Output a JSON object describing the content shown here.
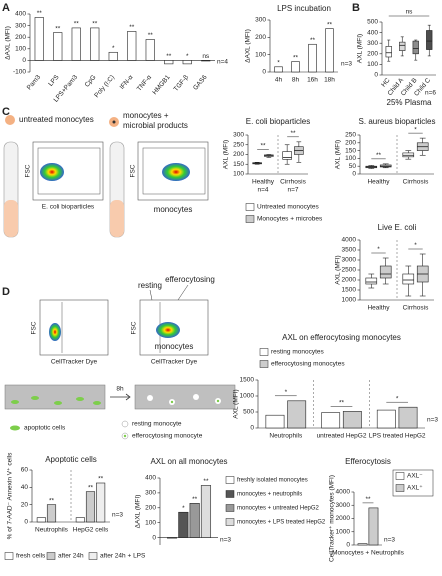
{
  "panels": {
    "a": "A",
    "b": "B",
    "c": "C",
    "d": "D"
  },
  "diagram": {
    "untreated": "untreated monocytes",
    "treated_1": "monocytes +",
    "treated_2": "microbial products",
    "fsc_c1": "FSC",
    "fsc_c2": "FSC",
    "xaxis_c1": "E. coli bioparticles",
    "monocytes_c": "monocytes",
    "fsc_d1": "FSC",
    "fsc_d2": "FSC",
    "xaxis_d1": "CellTracker Dye",
    "xaxis_d2": "CellTracker Dye",
    "resting": "resting",
    "efferocytosing": "efferocytosing",
    "monocytes_d": "monocytes",
    "time": "8h",
    "apoptotic": "apoptotic cells",
    "resting_monocyte": "resting monocyte",
    "efferocytosing_monocyte": "efferocytosing monocyte"
  },
  "chart_data": [
    {
      "type": "bar",
      "ylabel": "ΔAXL (MFI)",
      "categories": [
        "Pam3",
        "LPS",
        "LPS+Pam3",
        "CpG",
        "Poly (I:C)",
        "IFN-α",
        "TNF-α",
        "HMGB1",
        "TGF-β",
        "GAS6"
      ],
      "values": [
        370,
        240,
        280,
        280,
        70,
        250,
        180,
        -30,
        -30,
        0
      ],
      "color": "#ffffff",
      "significance": [
        "**",
        "**",
        "**",
        "**",
        "*",
        "**",
        "**",
        "**",
        "*",
        "ns"
      ],
      "ylim": [
        -100,
        400
      ],
      "yticks": [
        -100,
        0,
        100,
        200,
        300,
        400
      ],
      "note": "n=4"
    },
    {
      "type": "bar",
      "title": "LPS incubation",
      "ylabel": "ΔAXL (MFI)",
      "categories": [
        "4h",
        "8h",
        "16h",
        "18h"
      ],
      "values": [
        30,
        60,
        160,
        250
      ],
      "color": "#ffffff",
      "significance": [
        "*",
        "**",
        "**",
        "**"
      ],
      "ylim": [
        0,
        300
      ],
      "yticks": [
        0,
        100,
        200,
        300
      ],
      "note": "n=3"
    },
    {
      "type": "box",
      "ylabel": "AXL (MFI)",
      "subtitle": "25% Plasma",
      "categories": [
        "HC",
        "Child A",
        "Child B",
        "Child C"
      ],
      "values": [
        {
          "min": 130,
          "q1": 170,
          "median": 210,
          "q3": 270,
          "max": 330
        },
        {
          "min": 180,
          "q1": 230,
          "median": 280,
          "q3": 310,
          "max": 360
        },
        {
          "min": 140,
          "q1": 200,
          "median": 250,
          "q3": 320,
          "max": 330
        },
        {
          "min": 180,
          "q1": 240,
          "median": 320,
          "q3": 420,
          "max": 470
        }
      ],
      "colors": [
        "#ffffff",
        "#d9d9d9",
        "#8c8c8c",
        "#4d4d4d"
      ],
      "overall": "ns",
      "ylim": [
        0,
        500
      ],
      "yticks": [
        0,
        100,
        200,
        300,
        400,
        500
      ],
      "note": "n=6"
    },
    {
      "type": "box",
      "title": "E. coli bioparticles",
      "ylabel": "AXL (MFI)",
      "categories": [
        "Healthy",
        "Cirrhosis"
      ],
      "sample_sizes": [
        "n=4",
        "n=7"
      ],
      "series": [
        {
          "name": "Untreated monocytes",
          "color": "#ffffff",
          "values": [
            {
              "min": 150,
              "q1": 152,
              "median": 155,
              "q3": 158,
              "max": 160
            },
            {
              "min": 150,
              "q1": 175,
              "median": 185,
              "q3": 215,
              "max": 250
            }
          ]
        },
        {
          "name": "Monocytes + microbes",
          "color": "#cccccc",
          "values": [
            {
              "min": 185,
              "q1": 190,
              "median": 195,
              "q3": 198,
              "max": 200
            },
            {
              "min": 160,
              "q1": 200,
              "median": 220,
              "q3": 240,
              "max": 265
            }
          ]
        }
      ],
      "brackets": [
        "**",
        "**"
      ],
      "ylim": [
        100,
        300
      ],
      "yticks": [
        100,
        150,
        200,
        250,
        300
      ],
      "legend": true
    },
    {
      "type": "box",
      "title": "S. aureus bioparticles",
      "ylabel": "AXL (MFI)",
      "categories": [
        "Healthy",
        "Cirrhosis"
      ],
      "series": [
        {
          "color": "#ffffff",
          "values": [
            {
              "min": 35,
              "q1": 40,
              "median": 45,
              "q3": 50,
              "max": 55
            },
            {
              "min": 95,
              "q1": 110,
              "median": 120,
              "q3": 135,
              "max": 150
            }
          ]
        },
        {
          "color": "#cccccc",
          "values": [
            {
              "min": 40,
              "q1": 45,
              "median": 50,
              "q3": 58,
              "max": 65
            },
            {
              "min": 120,
              "q1": 150,
              "median": 175,
              "q3": 200,
              "max": 230
            }
          ]
        }
      ],
      "brackets": [
        "**",
        "*"
      ],
      "ylim": [
        0,
        250
      ],
      "yticks": [
        0,
        50,
        100,
        150,
        200,
        250
      ]
    },
    {
      "type": "box",
      "title": "Live E. coli",
      "ylabel": "AXL (MFI)",
      "categories": [
        "Healthy",
        "Cirrhosis"
      ],
      "series": [
        {
          "color": "#ffffff",
          "values": [
            {
              "min": 1600,
              "q1": 1800,
              "median": 1900,
              "q3": 2100,
              "max": 2300
            },
            {
              "min": 1200,
              "q1": 1800,
              "median": 2000,
              "q3": 2300,
              "max": 2700
            }
          ]
        },
        {
          "color": "#cccccc",
          "values": [
            {
              "min": 1800,
              "q1": 2100,
              "median": 2300,
              "q3": 2700,
              "max": 3100
            },
            {
              "min": 1200,
              "q1": 1900,
              "median": 2300,
              "q3": 2700,
              "max": 3300
            }
          ]
        }
      ],
      "brackets": [
        "*",
        "*"
      ],
      "ylim": [
        1000,
        4000
      ],
      "yticks": [
        1000,
        1500,
        2000,
        2500,
        3000,
        3500,
        4000
      ]
    },
    {
      "type": "bar",
      "title": "AXL on efferocytosing monocytes",
      "ylabel": "AXL (MFI)",
      "categories": [
        "Neutrophils",
        "untreated HepG2",
        "LPS treated HepG2"
      ],
      "series": [
        {
          "name": "resting monocytes",
          "color": "#ffffff",
          "values": [
            400,
            480,
            560
          ]
        },
        {
          "name": "efferocytosing monocytes",
          "color": "#cccccc",
          "values": [
            850,
            520,
            650
          ]
        }
      ],
      "brackets": [
        "*",
        "**",
        "*"
      ],
      "ylim": [
        0,
        1500
      ],
      "yticks": [
        0,
        500,
        1000,
        1500
      ],
      "note": "n=3",
      "legend": true
    },
    {
      "type": "bar",
      "title": "Apoptotic cells",
      "ylabel": "% of 7-AAD⁻ Annexin V⁺ cells",
      "categories": [
        "Neutrophils",
        "HepG2 cells"
      ],
      "series": [
        {
          "name": "fresh cells",
          "color": "#ffffff",
          "values": [
            5,
            5
          ]
        },
        {
          "name": "after 24h",
          "color": "#cccccc",
          "values": [
            20,
            35
          ],
          "significance": [
            "**",
            "**"
          ]
        },
        {
          "name": "after 24h + LPS",
          "color": "#eeeeee",
          "values": [
            null,
            45
          ],
          "significance": [
            null,
            "**"
          ]
        }
      ],
      "ylim": [
        0,
        60
      ],
      "yticks": [
        0,
        20,
        40,
        60
      ],
      "note": "n=3",
      "legend": true
    },
    {
      "type": "bar",
      "title": "AXL on all monocytes",
      "ylabel": "ΔAXL (MFI)",
      "categories": [
        null
      ],
      "series": [
        {
          "name": "freshly isolated monocytes",
          "color": "#ffffff",
          "values": [
            0
          ]
        },
        {
          "name": "monocytes + neutrophils",
          "color": "#555555",
          "values": [
            170
          ],
          "significance": [
            "*"
          ]
        },
        {
          "name": "monocytes + untreated HepG2",
          "color": "#999999",
          "values": [
            230
          ],
          "significance": [
            "**"
          ]
        },
        {
          "name": "monocytes + LPS treated HepG2",
          "color": "#dddddd",
          "values": [
            350
          ],
          "significance": [
            "**"
          ]
        }
      ],
      "ylim": [
        -50,
        400
      ],
      "yticks": [
        0,
        100,
        200,
        300,
        400
      ],
      "note": "n=3",
      "legend": true
    },
    {
      "type": "bar",
      "title": "Efferocytosis",
      "ylabel": "CellTracker⁺ monocytes (MFI)",
      "categories": [
        "Monocytes + Neutrophils"
      ],
      "series": [
        {
          "name": "AXL⁻",
          "color": "#ffffff",
          "values": [
            100
          ]
        },
        {
          "name": "AXL⁺",
          "color": "#cccccc",
          "values": [
            2800
          ]
        }
      ],
      "brackets": [
        "**"
      ],
      "ylim": [
        0,
        4000
      ],
      "yticks": [
        0,
        1000,
        2000,
        3000,
        4000
      ],
      "note": "n=3",
      "legend": true
    }
  ]
}
